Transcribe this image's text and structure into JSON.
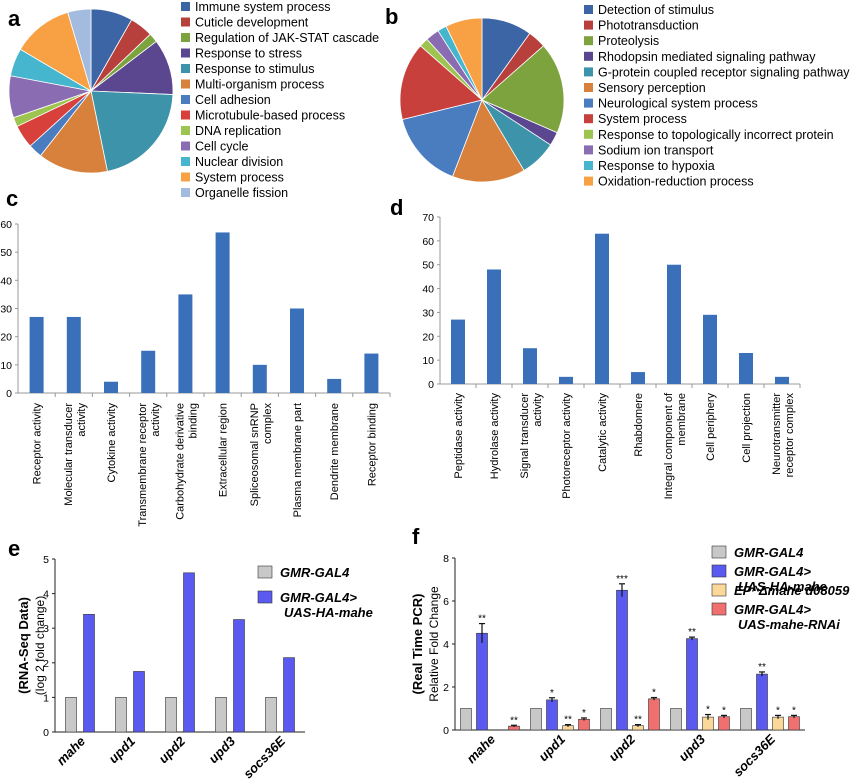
{
  "panels": {
    "a": {
      "label": "a"
    },
    "b": {
      "label": "b"
    },
    "c": {
      "label": "c"
    },
    "d": {
      "label": "d"
    },
    "e": {
      "label": "e"
    },
    "f": {
      "label": "f"
    }
  },
  "chart_data": [
    {
      "id": "a",
      "type": "pie",
      "labels": [
        "Immune system process",
        "Cuticle development",
        "Regulation of JAK-STAT cascade",
        "Response to stress",
        "Response to stimulus",
        "Multi-organism process",
        "Cell adhesion",
        "Microtubule-based process",
        "DNA replication",
        "Cell cycle",
        "Nuclear division",
        "System process",
        "Organelle fission"
      ],
      "values": [
        9,
        5,
        2,
        12,
        23,
        15,
        3,
        5,
        2,
        9,
        6,
        13,
        5
      ],
      "colors": [
        "#3c65a6",
        "#b8403c",
        "#7da33e",
        "#5b4690",
        "#3c93aa",
        "#d7813c",
        "#4a7cc0",
        "#d8403c",
        "#9ec450",
        "#8a6cb2",
        "#45b6ce",
        "#f7a044",
        "#a4bbe0"
      ]
    },
    {
      "id": "b",
      "type": "pie",
      "labels": [
        "Detection of stimulus",
        "Phototransduction",
        "Proteolysis",
        "Rhodopsin mediated signaling pathway",
        "G-protein coupled receptor signaling pathway",
        "Sensory perception",
        "Neurological system process",
        "System process",
        "Response to topologically incorrect protein",
        "Sodium ion transport",
        "Response to hypoxia",
        "Oxidation-reduction process"
      ],
      "values": [
        11,
        4,
        20,
        3,
        8,
        16,
        17,
        17,
        2,
        3,
        2,
        8
      ],
      "colors": [
        "#3c65a6",
        "#b8403c",
        "#7da33e",
        "#5b4690",
        "#3c93aa",
        "#d7813c",
        "#4a7cc0",
        "#c8403c",
        "#9ec450",
        "#8a6cb2",
        "#45b6ce",
        "#f7a044"
      ]
    },
    {
      "id": "c",
      "type": "bar",
      "categories": [
        "Receptor activity",
        "Molecular transducer activity",
        "Cytokine activity",
        "Transmembrane receptor activity",
        "Carbohydrate derivative binding",
        "Extracellular region",
        "Spliceosomal snRNP complex",
        "Plasma membrane part",
        "Dendrite membrane",
        "Receptor binding"
      ],
      "values": [
        27,
        27,
        4,
        15,
        35,
        57,
        10,
        30,
        5,
        14
      ],
      "ylim": [
        0,
        60
      ],
      "yticks": [
        "0",
        "10",
        "20",
        "30",
        "40",
        "50",
        "60"
      ],
      "color": "#3a6fba"
    },
    {
      "id": "d",
      "type": "bar",
      "categories": [
        "Peptidase activity",
        "Hydrolase activity",
        "Signal transducer activity",
        "Photoreceptor activity",
        "Catalytic activity",
        "Rhabdomere",
        "Integral component of membrane",
        "Cell periphery",
        "Cell projection",
        "Neurotransmitter receptor complex"
      ],
      "values": [
        27,
        48,
        15,
        3,
        63,
        5,
        50,
        29,
        13,
        3
      ],
      "ylim": [
        0,
        70
      ],
      "yticks": [
        "0",
        "10",
        "20",
        "30",
        "40",
        "50",
        "60",
        "70"
      ],
      "color": "#3a6fba"
    },
    {
      "id": "e",
      "type": "bar",
      "categories": [
        "mahe",
        "upd1",
        "upd2",
        "upd3",
        "socs36E"
      ],
      "ylabel": "(RNA-Seq Data)",
      "ylabel2": "(log 2 fold change)",
      "ylim": [
        0,
        5
      ],
      "yticks": [
        "0",
        "1",
        "2",
        "3",
        "4",
        "5"
      ],
      "series": [
        {
          "name": "GMR-GAL4",
          "values": [
            1,
            1,
            1,
            1,
            1
          ],
          "color": "#c8c8c8"
        },
        {
          "name": "GMR-GAL4> UAS-HA-mahe",
          "values": [
            3.4,
            1.75,
            4.6,
            3.25,
            2.15
          ],
          "color": "#5a5af0"
        }
      ]
    },
    {
      "id": "f",
      "type": "bar",
      "categories": [
        "mahe",
        "upd1",
        "upd2",
        "upd3",
        "socs36E"
      ],
      "ylabel": "(Real Time PCR)",
      "ylabel2": "Relative Fold Change",
      "ylim": [
        0,
        8
      ],
      "yticks": [
        "0",
        "2",
        "4",
        "6",
        "8"
      ],
      "series": [
        {
          "name": "GMR-GAL4",
          "values": [
            1,
            1,
            1,
            1,
            1
          ],
          "errors": [
            0,
            0,
            0,
            0,
            0
          ],
          "stars": [
            "",
            "",
            "",
            "",
            ""
          ],
          "color": "#c8c8c8"
        },
        {
          "name": "GMR-GAL4> UAS-HA-mahe",
          "values": [
            4.5,
            1.4,
            6.5,
            4.25,
            2.6
          ],
          "errors": [
            0.45,
            0.1,
            0.3,
            0.07,
            0.1
          ],
          "stars": [
            "**",
            "*",
            "***",
            "**",
            "**"
          ],
          "color": "#5a5af0"
        },
        {
          "name": "EP^Δmahe d08059",
          "values": [
            null,
            0.2,
            0.2,
            0.6,
            0.6
          ],
          "errors": [
            0,
            0.05,
            0.05,
            0.12,
            0.08
          ],
          "stars": [
            "",
            "**",
            "**",
            "*",
            "*"
          ],
          "color": "#fbd89a"
        },
        {
          "name": "GMR-GAL4> UAS-mahe-RNAi",
          "values": [
            0.18,
            0.5,
            1.45,
            0.62,
            0.62
          ],
          "errors": [
            0.04,
            0.06,
            0.06,
            0.06,
            0.06
          ],
          "stars": [
            "**",
            "*",
            "*",
            "*",
            "*"
          ],
          "color": "#f07070"
        }
      ]
    }
  ]
}
